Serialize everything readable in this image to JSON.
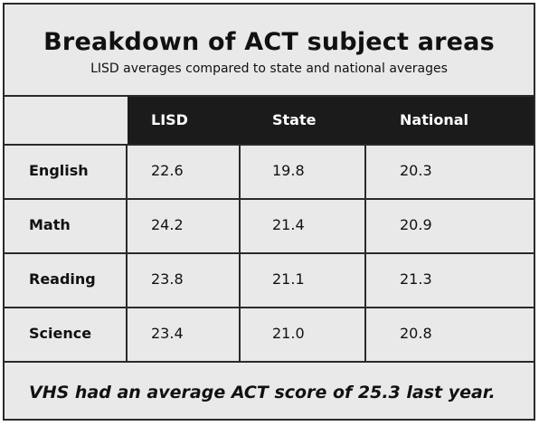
{
  "title": "Breakdown of ACT subject areas",
  "subtitle": "LISD averages compared to state and national averages",
  "table": {
    "columns": [
      "LISD",
      "State",
      "National"
    ],
    "rows": [
      {
        "label": "English",
        "values": [
          "22.6",
          "19.8",
          "20.3"
        ]
      },
      {
        "label": "Math",
        "values": [
          "24.2",
          "21.4",
          "20.9"
        ]
      },
      {
        "label": "Reading",
        "values": [
          "23.8",
          "21.1",
          "21.3"
        ]
      },
      {
        "label": "Science",
        "values": [
          "23.4",
          "21.0",
          "20.8"
        ]
      }
    ]
  },
  "footer": "VHS had an average ACT score of 25.3 last year.",
  "colors": {
    "background": "#e9e9e9",
    "header_fill": "#1b1b1b",
    "border": "#2a2a2a",
    "header_text": "#ffffff"
  }
}
